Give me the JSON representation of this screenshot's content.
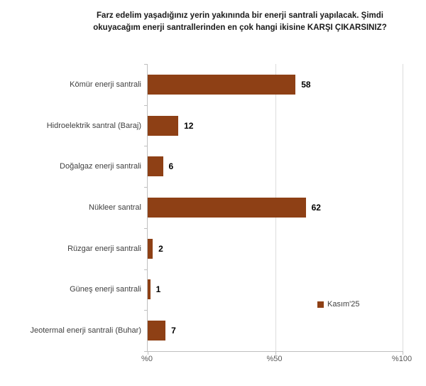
{
  "chart_data": {
    "type": "bar",
    "orientation": "horizontal",
    "title": "Farz edelim yaşadığınız yerin yakınında bir enerji santrali yapılacak. Şimdi okuyacağım enerji santrallerinden en çok hangi ikisine KARŞI ÇIKARSINIZ?",
    "categories": [
      "Kömür enerji santrali",
      "Hidroelektrik santral (Baraj)",
      "Doğalgaz enerji santrali",
      "Nükleer santral",
      "Rüzgar enerji santrali",
      "Güneş enerji santrali",
      "Jeotermal enerji santrali (Buhar)"
    ],
    "series": [
      {
        "name": "Kasım'25",
        "values": [
          58,
          12,
          6,
          62,
          2,
          1,
          7
        ]
      }
    ],
    "xlim": [
      0,
      100
    ],
    "x_ticks": [
      {
        "label": "%0",
        "value": 0
      },
      {
        "label": "%50",
        "value": 50
      },
      {
        "label": "%100",
        "value": 100
      }
    ],
    "legend": [
      "Kasım'25"
    ],
    "legend_position": "right-middle",
    "grid": "vertical-light"
  },
  "colors": {
    "bar": "#8E4015",
    "axis": "#BFBFBF",
    "gridline": "#DCDCDC",
    "title_text": "#1A1A1A",
    "category_text": "#404040",
    "value_text": "#000000",
    "tick_text": "#595959"
  }
}
